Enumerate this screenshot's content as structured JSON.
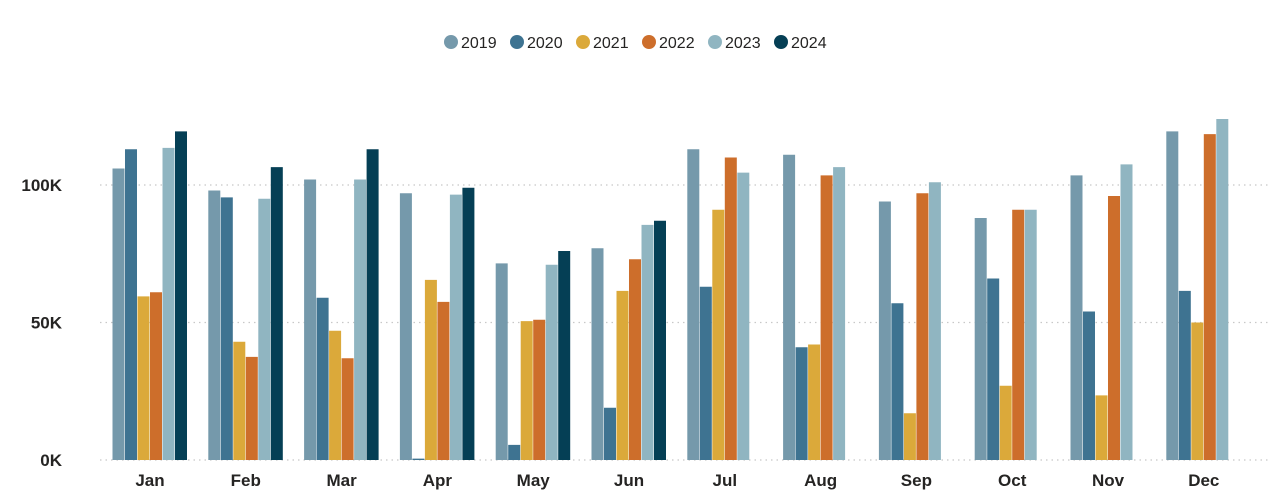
{
  "chart_data": {
    "type": "bar",
    "categories": [
      "Jan",
      "Feb",
      "Mar",
      "Apr",
      "May",
      "Jun",
      "Jul",
      "Aug",
      "Sep",
      "Oct",
      "Nov",
      "Dec"
    ],
    "series": [
      {
        "name": "2019",
        "color": "#7599ab",
        "values": [
          106000,
          98000,
          102000,
          97000,
          71500,
          77000,
          113000,
          111000,
          94000,
          88000,
          103500,
          119500
        ]
      },
      {
        "name": "2020",
        "color": "#3e7391",
        "values": [
          113000,
          95500,
          59000,
          500,
          5500,
          19000,
          63000,
          41000,
          57000,
          66000,
          54000,
          61500
        ]
      },
      {
        "name": "2021",
        "color": "#dba93a",
        "values": [
          59500,
          43000,
          47000,
          65500,
          50500,
          61500,
          91000,
          42000,
          17000,
          27000,
          23500,
          50000
        ]
      },
      {
        "name": "2022",
        "color": "#cd6e2b",
        "values": [
          61000,
          37500,
          37000,
          57500,
          51000,
          73000,
          110000,
          103500,
          97000,
          91000,
          96000,
          118500
        ]
      },
      {
        "name": "2023",
        "color": "#90b5c1",
        "values": [
          113500,
          95000,
          102000,
          96500,
          71000,
          85500,
          104500,
          106500,
          101000,
          91000,
          107500,
          124000
        ]
      },
      {
        "name": "2024",
        "color": "#053f55",
        "values": [
          119500,
          106500,
          113000,
          99000,
          76000,
          87000,
          null,
          null,
          null,
          null,
          null,
          null
        ]
      }
    ],
    "ylim": [
      0,
      130000
    ],
    "yticks": [
      0,
      50000,
      100000
    ],
    "ytick_labels": [
      "0K",
      "50K",
      "100K"
    ],
    "grid": true,
    "legend_position": "top-center"
  }
}
